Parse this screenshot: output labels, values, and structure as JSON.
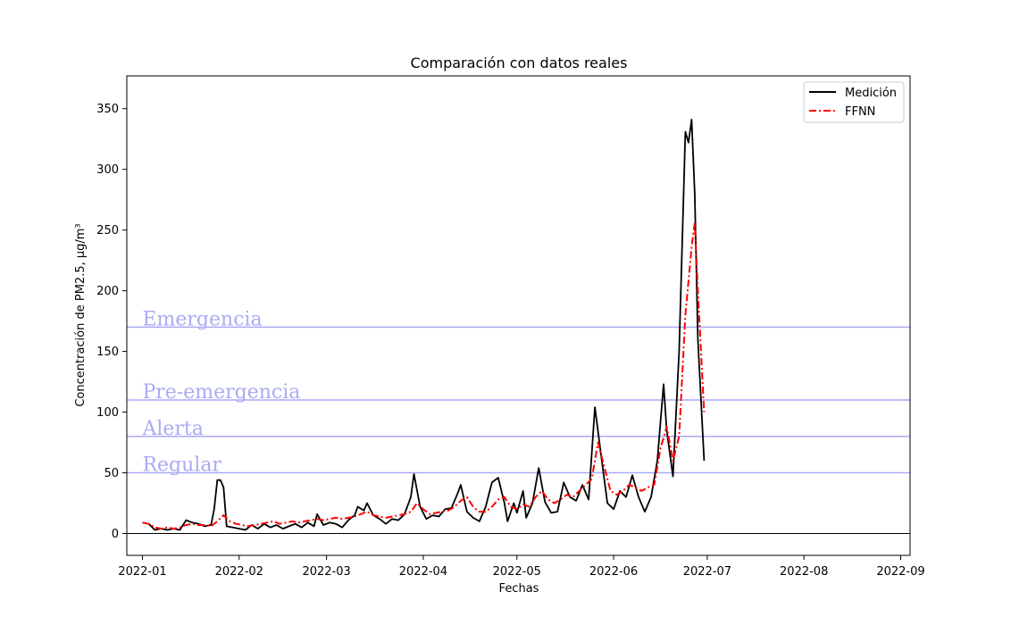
{
  "chart_data": {
    "type": "line",
    "title": "Comparación con datos reales",
    "xlabel": "Fechas",
    "ylabel": "Concentración de PM2.5, μg/m³",
    "xlim": [
      "2021-12-27",
      "2022-09-04"
    ],
    "ylim": [
      -18,
      377
    ],
    "y_ticks": [
      0,
      50,
      100,
      150,
      200,
      250,
      300,
      350
    ],
    "x_ticks": [
      "2022-01-01",
      "2022-02-01",
      "2022-03-01",
      "2022-04-01",
      "2022-05-01",
      "2022-06-01",
      "2022-07-01",
      "2022-08-01",
      "2022-09-01"
    ],
    "x_tick_labels": [
      "2022-01",
      "2022-02",
      "2022-03",
      "2022-04",
      "2022-05",
      "2022-06",
      "2022-07",
      "2022-08",
      "2022-09"
    ],
    "grid": false,
    "legend_position": "top-right",
    "zero_line": true,
    "threshold_color": "#aaaaf5",
    "thresholds": [
      {
        "label": "Emergencia",
        "value": 170
      },
      {
        "label": "Pre-emergencia",
        "value": 110
      },
      {
        "label": "Alerta",
        "value": 80
      },
      {
        "label": "Regular",
        "value": 50
      }
    ],
    "start_date": "2022-01-01",
    "series": [
      {
        "name": "Medición",
        "color": "#000000",
        "style": "solid",
        "points": [
          [
            "2022-01-01",
            9
          ],
          [
            "2022-01-03",
            8
          ],
          [
            "2022-01-05",
            3
          ],
          [
            "2022-01-07",
            4
          ],
          [
            "2022-01-09",
            3
          ],
          [
            "2022-01-11",
            4
          ],
          [
            "2022-01-13",
            3
          ],
          [
            "2022-01-15",
            11
          ],
          [
            "2022-01-17",
            9
          ],
          [
            "2022-01-19",
            8
          ],
          [
            "2022-01-21",
            6
          ],
          [
            "2022-01-23",
            7
          ],
          [
            "2022-01-24",
            20
          ],
          [
            "2022-01-25",
            44
          ],
          [
            "2022-01-26",
            44
          ],
          [
            "2022-01-27",
            38
          ],
          [
            "2022-01-28",
            6
          ],
          [
            "2022-01-30",
            5
          ],
          [
            "2022-02-01",
            4
          ],
          [
            "2022-02-03",
            3
          ],
          [
            "2022-02-05",
            7
          ],
          [
            "2022-02-07",
            4
          ],
          [
            "2022-02-09",
            8
          ],
          [
            "2022-02-11",
            5
          ],
          [
            "2022-02-13",
            7
          ],
          [
            "2022-02-15",
            4
          ],
          [
            "2022-02-17",
            6
          ],
          [
            "2022-02-19",
            8
          ],
          [
            "2022-02-21",
            5
          ],
          [
            "2022-02-23",
            9
          ],
          [
            "2022-02-25",
            6
          ],
          [
            "2022-02-26",
            16
          ],
          [
            "2022-02-28",
            7
          ],
          [
            "2022-03-02",
            9
          ],
          [
            "2022-03-04",
            8
          ],
          [
            "2022-03-06",
            5
          ],
          [
            "2022-03-08",
            11
          ],
          [
            "2022-03-10",
            15
          ],
          [
            "2022-03-11",
            22
          ],
          [
            "2022-03-13",
            19
          ],
          [
            "2022-03-14",
            25
          ],
          [
            "2022-03-16",
            15
          ],
          [
            "2022-03-18",
            12
          ],
          [
            "2022-03-20",
            8
          ],
          [
            "2022-03-22",
            12
          ],
          [
            "2022-03-24",
            11
          ],
          [
            "2022-03-26",
            16
          ],
          [
            "2022-03-28",
            30
          ],
          [
            "2022-03-29",
            49
          ],
          [
            "2022-03-31",
            22
          ],
          [
            "2022-04-02",
            12
          ],
          [
            "2022-04-04",
            15
          ],
          [
            "2022-04-06",
            14
          ],
          [
            "2022-04-08",
            20
          ],
          [
            "2022-04-10",
            21
          ],
          [
            "2022-04-12",
            33
          ],
          [
            "2022-04-13",
            40
          ],
          [
            "2022-04-15",
            18
          ],
          [
            "2022-04-17",
            13
          ],
          [
            "2022-04-19",
            10
          ],
          [
            "2022-04-21",
            22
          ],
          [
            "2022-04-23",
            42
          ],
          [
            "2022-04-25",
            46
          ],
          [
            "2022-04-27",
            25
          ],
          [
            "2022-04-28",
            10
          ],
          [
            "2022-04-30",
            25
          ],
          [
            "2022-05-01",
            17
          ],
          [
            "2022-05-03",
            35
          ],
          [
            "2022-05-04",
            13
          ],
          [
            "2022-05-06",
            25
          ],
          [
            "2022-05-08",
            54
          ],
          [
            "2022-05-10",
            26
          ],
          [
            "2022-05-12",
            17
          ],
          [
            "2022-05-14",
            18
          ],
          [
            "2022-05-16",
            42
          ],
          [
            "2022-05-18",
            30
          ],
          [
            "2022-05-20",
            27
          ],
          [
            "2022-05-22",
            40
          ],
          [
            "2022-05-24",
            28
          ],
          [
            "2022-05-26",
            104
          ],
          [
            "2022-05-28",
            64
          ],
          [
            "2022-05-30",
            25
          ],
          [
            "2022-06-01",
            20
          ],
          [
            "2022-06-03",
            35
          ],
          [
            "2022-06-05",
            30
          ],
          [
            "2022-06-07",
            48
          ],
          [
            "2022-06-09",
            30
          ],
          [
            "2022-06-11",
            18
          ],
          [
            "2022-06-13",
            30
          ],
          [
            "2022-06-15",
            60
          ],
          [
            "2022-06-17",
            123
          ],
          [
            "2022-06-18",
            85
          ],
          [
            "2022-06-20",
            47
          ],
          [
            "2022-06-22",
            150
          ],
          [
            "2022-06-24",
            331
          ],
          [
            "2022-06-25",
            322
          ],
          [
            "2022-06-26",
            341
          ],
          [
            "2022-06-27",
            280
          ],
          [
            "2022-06-28",
            160
          ],
          [
            "2022-06-30",
            60
          ]
        ]
      },
      {
        "name": "FFNN",
        "color": "#ff0000",
        "style": "dashdot",
        "points": [
          [
            "2022-01-01",
            9
          ],
          [
            "2022-01-03",
            8
          ],
          [
            "2022-01-05",
            5
          ],
          [
            "2022-01-07",
            4
          ],
          [
            "2022-01-09",
            5
          ],
          [
            "2022-01-11",
            4
          ],
          [
            "2022-01-13",
            5
          ],
          [
            "2022-01-15",
            7
          ],
          [
            "2022-01-17",
            8
          ],
          [
            "2022-01-19",
            7
          ],
          [
            "2022-01-21",
            7
          ],
          [
            "2022-01-23",
            6
          ],
          [
            "2022-01-25",
            10
          ],
          [
            "2022-01-27",
            15
          ],
          [
            "2022-01-29",
            10
          ],
          [
            "2022-01-31",
            8
          ],
          [
            "2022-02-02",
            7
          ],
          [
            "2022-02-04",
            6
          ],
          [
            "2022-02-06",
            7
          ],
          [
            "2022-02-08",
            8
          ],
          [
            "2022-02-10",
            9
          ],
          [
            "2022-02-12",
            10
          ],
          [
            "2022-02-14",
            8
          ],
          [
            "2022-02-16",
            9
          ],
          [
            "2022-02-18",
            10
          ],
          [
            "2022-02-20",
            9
          ],
          [
            "2022-02-22",
            10
          ],
          [
            "2022-02-24",
            11
          ],
          [
            "2022-02-26",
            12
          ],
          [
            "2022-02-28",
            11
          ],
          [
            "2022-03-02",
            12
          ],
          [
            "2022-03-04",
            13
          ],
          [
            "2022-03-06",
            12
          ],
          [
            "2022-03-08",
            13
          ],
          [
            "2022-03-10",
            14
          ],
          [
            "2022-03-12",
            16
          ],
          [
            "2022-03-14",
            18
          ],
          [
            "2022-03-16",
            15
          ],
          [
            "2022-03-18",
            14
          ],
          [
            "2022-03-20",
            13
          ],
          [
            "2022-03-22",
            14
          ],
          [
            "2022-03-24",
            15
          ],
          [
            "2022-03-26",
            16
          ],
          [
            "2022-03-28",
            18
          ],
          [
            "2022-03-30",
            25
          ],
          [
            "2022-04-01",
            20
          ],
          [
            "2022-04-03",
            16
          ],
          [
            "2022-04-05",
            17
          ],
          [
            "2022-04-07",
            18
          ],
          [
            "2022-04-09",
            19
          ],
          [
            "2022-04-11",
            22
          ],
          [
            "2022-04-13",
            27
          ],
          [
            "2022-04-15",
            30
          ],
          [
            "2022-04-17",
            22
          ],
          [
            "2022-04-19",
            18
          ],
          [
            "2022-04-21",
            18
          ],
          [
            "2022-04-23",
            22
          ],
          [
            "2022-04-25",
            28
          ],
          [
            "2022-04-27",
            30
          ],
          [
            "2022-04-29",
            22
          ],
          [
            "2022-05-01",
            20
          ],
          [
            "2022-05-03",
            24
          ],
          [
            "2022-05-05",
            22
          ],
          [
            "2022-05-07",
            30
          ],
          [
            "2022-05-09",
            35
          ],
          [
            "2022-05-11",
            28
          ],
          [
            "2022-05-13",
            25
          ],
          [
            "2022-05-15",
            28
          ],
          [
            "2022-05-17",
            32
          ],
          [
            "2022-05-19",
            30
          ],
          [
            "2022-05-21",
            35
          ],
          [
            "2022-05-23",
            40
          ],
          [
            "2022-05-25",
            45
          ],
          [
            "2022-05-27",
            75
          ],
          [
            "2022-05-29",
            55
          ],
          [
            "2022-05-31",
            35
          ],
          [
            "2022-06-02",
            32
          ],
          [
            "2022-06-04",
            35
          ],
          [
            "2022-06-06",
            40
          ],
          [
            "2022-06-08",
            38
          ],
          [
            "2022-06-10",
            35
          ],
          [
            "2022-06-12",
            38
          ],
          [
            "2022-06-14",
            40
          ],
          [
            "2022-06-16",
            70
          ],
          [
            "2022-06-18",
            88
          ],
          [
            "2022-06-20",
            60
          ],
          [
            "2022-06-22",
            80
          ],
          [
            "2022-06-24",
            180
          ],
          [
            "2022-06-26",
            236
          ],
          [
            "2022-06-27",
            256
          ],
          [
            "2022-06-28",
            200
          ],
          [
            "2022-06-30",
            100
          ]
        ]
      }
    ]
  }
}
